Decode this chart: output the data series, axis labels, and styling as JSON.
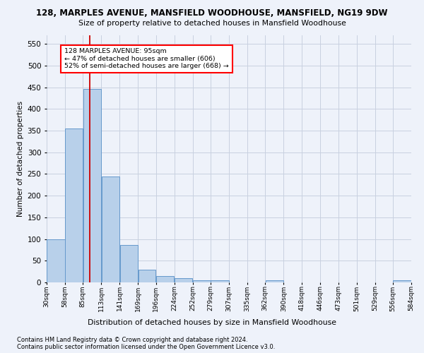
{
  "title": "128, MARPLES AVENUE, MANSFIELD WOODHOUSE, MANSFIELD, NG19 9DW",
  "subtitle": "Size of property relative to detached houses in Mansfield Woodhouse",
  "xlabel": "Distribution of detached houses by size in Mansfield Woodhouse",
  "ylabel": "Number of detached properties",
  "footnote1": "Contains HM Land Registry data © Crown copyright and database right 2024.",
  "footnote2": "Contains public sector information licensed under the Open Government Licence v3.0.",
  "bar_color": "#b8d0ea",
  "bar_edge_color": "#6699cc",
  "background_color": "#eef2fa",
  "grid_color": "#c8d0e0",
  "annotation_text": "128 MARPLES AVENUE: 95sqm\n← 47% of detached houses are smaller (606)\n52% of semi-detached houses are larger (668) →",
  "property_size": 95,
  "vline_x": 95,
  "vline_color": "#cc0000",
  "bin_edges": [
    30,
    58,
    85,
    113,
    141,
    169,
    196,
    224,
    252,
    279,
    307,
    335,
    362,
    390,
    418,
    446,
    473,
    501,
    529,
    556,
    584
  ],
  "bar_heights": [
    100,
    355,
    447,
    245,
    87,
    30,
    14,
    9,
    5,
    5,
    0,
    0,
    5,
    0,
    0,
    0,
    0,
    0,
    0,
    5
  ],
  "ylim": [
    0,
    570
  ],
  "yticks": [
    0,
    50,
    100,
    150,
    200,
    250,
    300,
    350,
    400,
    450,
    500,
    550
  ]
}
